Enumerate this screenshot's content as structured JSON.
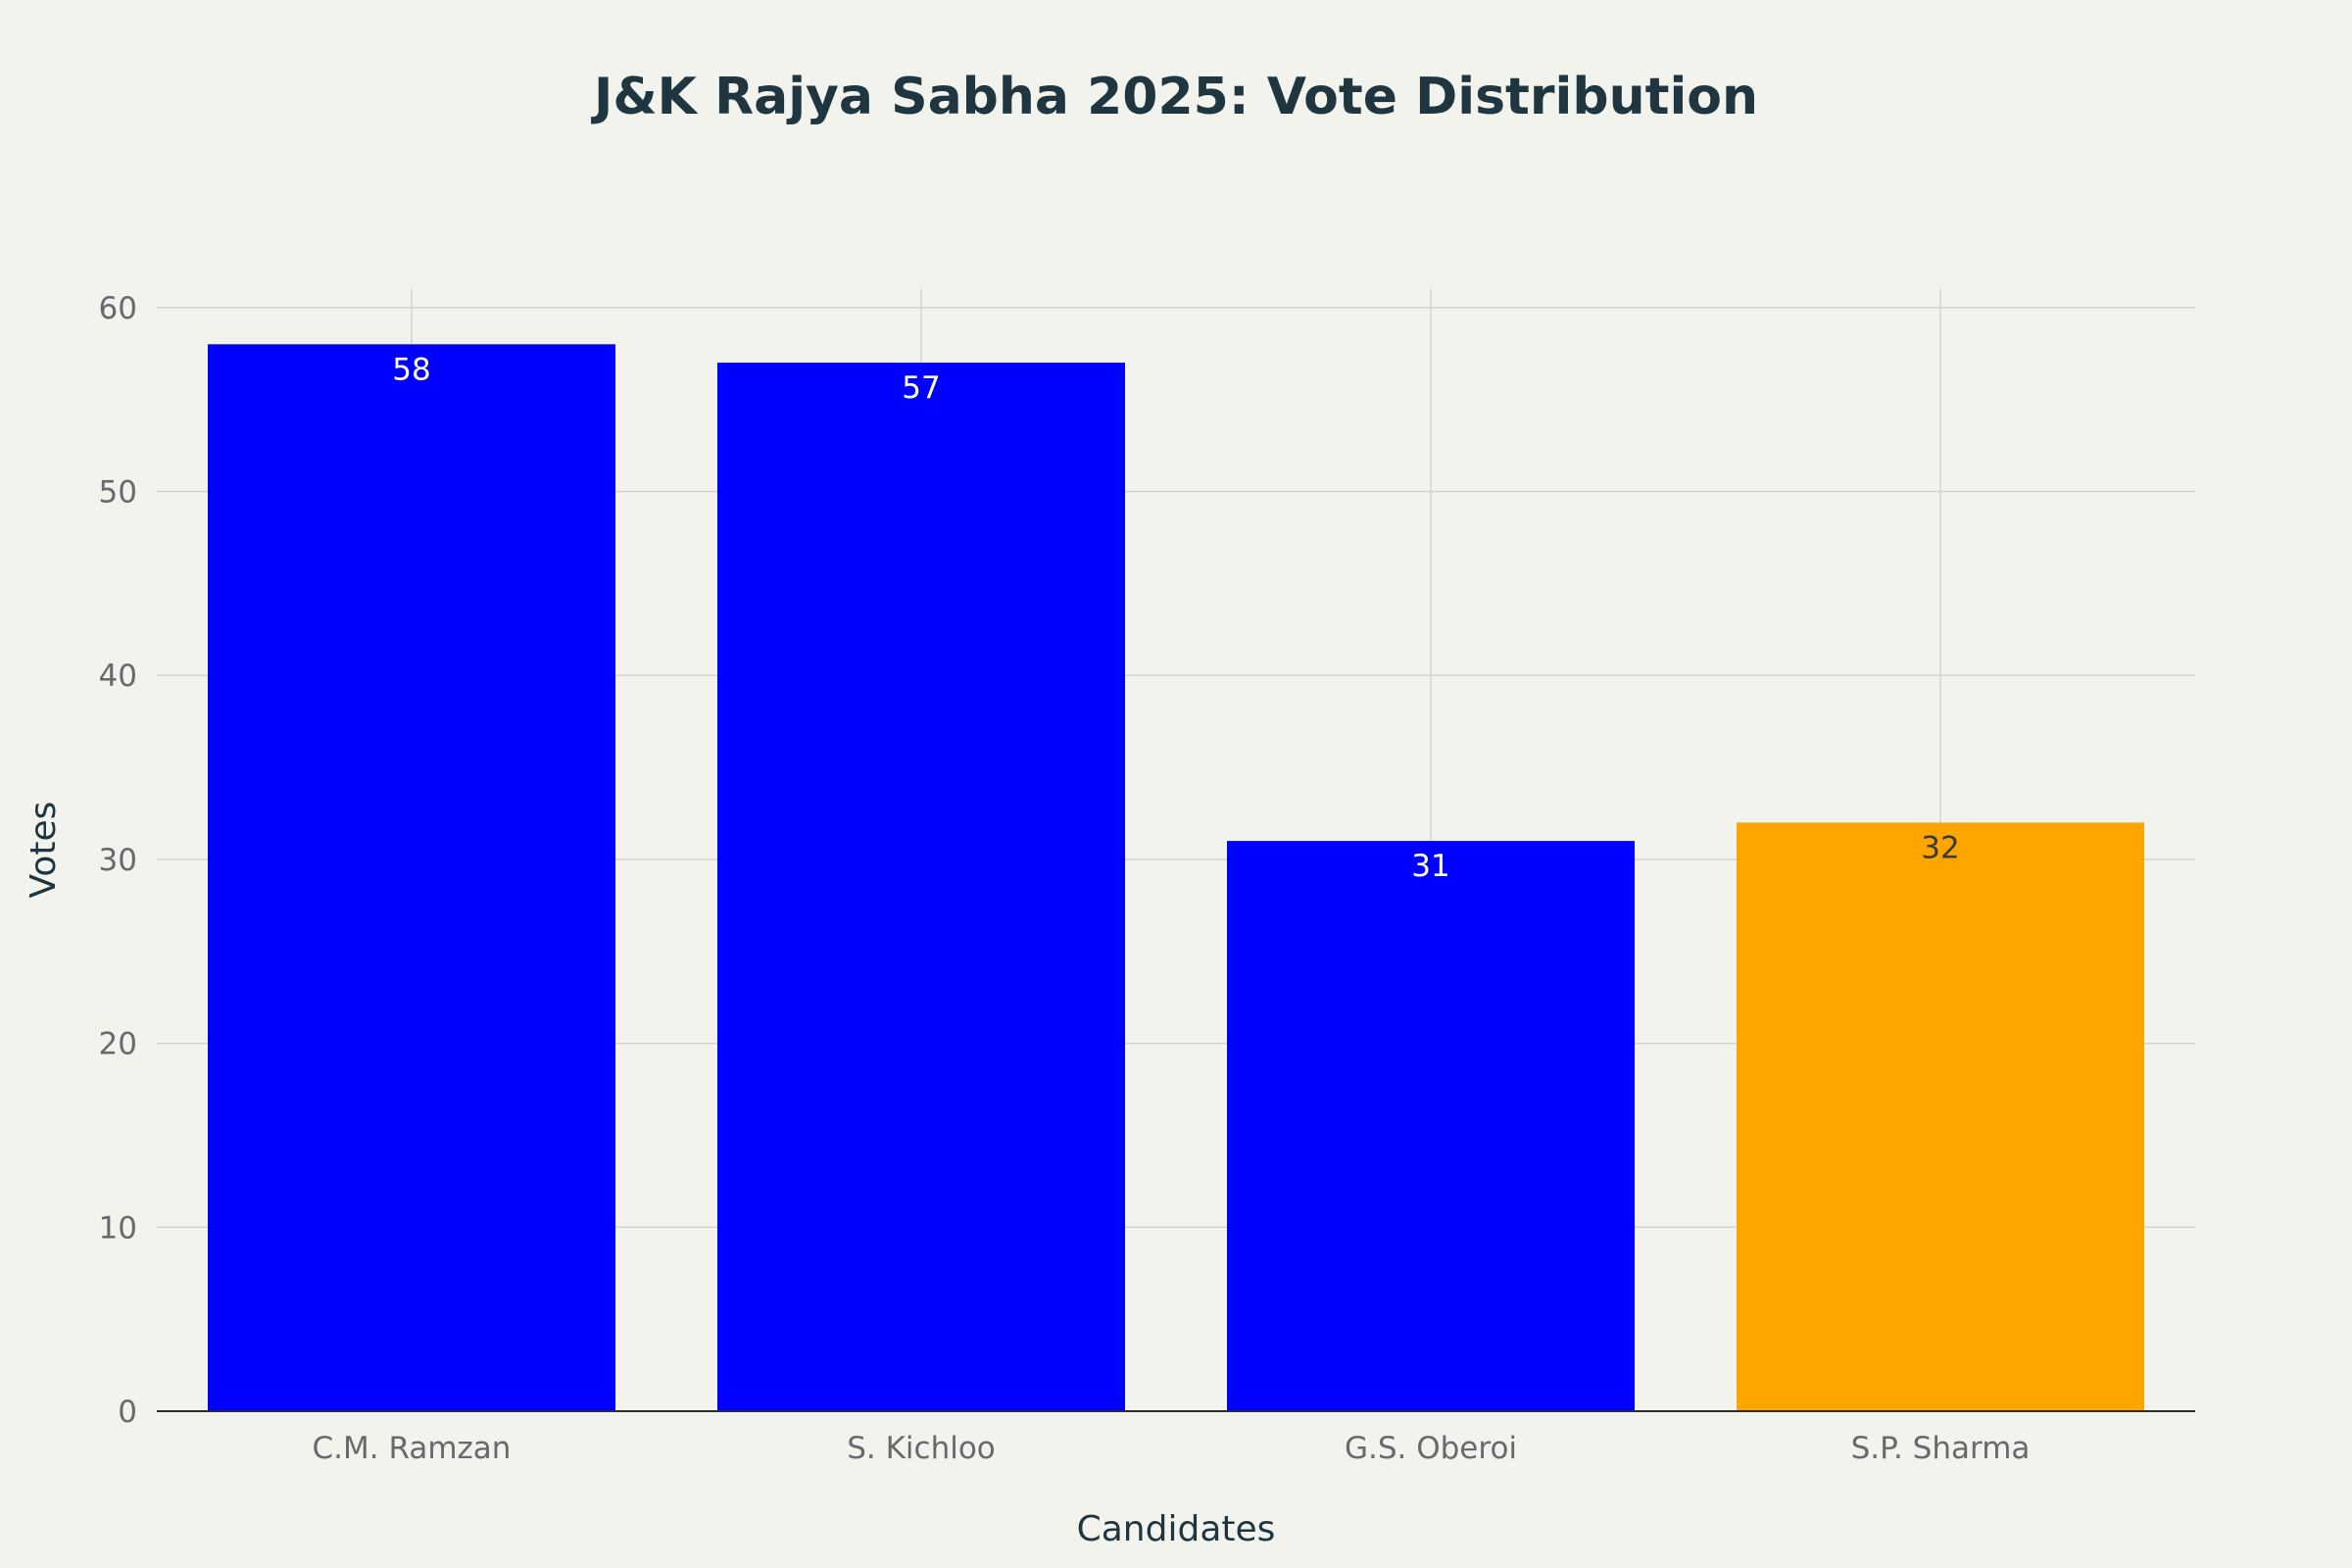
{
  "chart_data": {
    "type": "bar",
    "title": "J&K Rajya Sabha 2025: Vote Distribution",
    "xlabel": "Candidates",
    "ylabel": "Votes",
    "categories": [
      "C.M. Ramzan",
      "S. Kichloo",
      "G.S. Oberoi",
      "S.P. Sharma"
    ],
    "values": [
      58,
      57,
      31,
      32
    ],
    "data_labels": [
      "58",
      "57",
      "31",
      "32"
    ],
    "bar_colors": [
      "#0000ff",
      "#0000ff",
      "#0000ff",
      "#ffa500"
    ],
    "data_label_colors": [
      "#ffffff",
      "#ffffff",
      "#ffffff",
      "#3a3a3a"
    ],
    "yticks": [
      0,
      10,
      20,
      30,
      40,
      50,
      60
    ],
    "ytick_labels": [
      "0",
      "10",
      "20",
      "30",
      "40",
      "50",
      "60"
    ],
    "ylim": [
      0,
      61
    ],
    "grid": true,
    "legend": false
  }
}
